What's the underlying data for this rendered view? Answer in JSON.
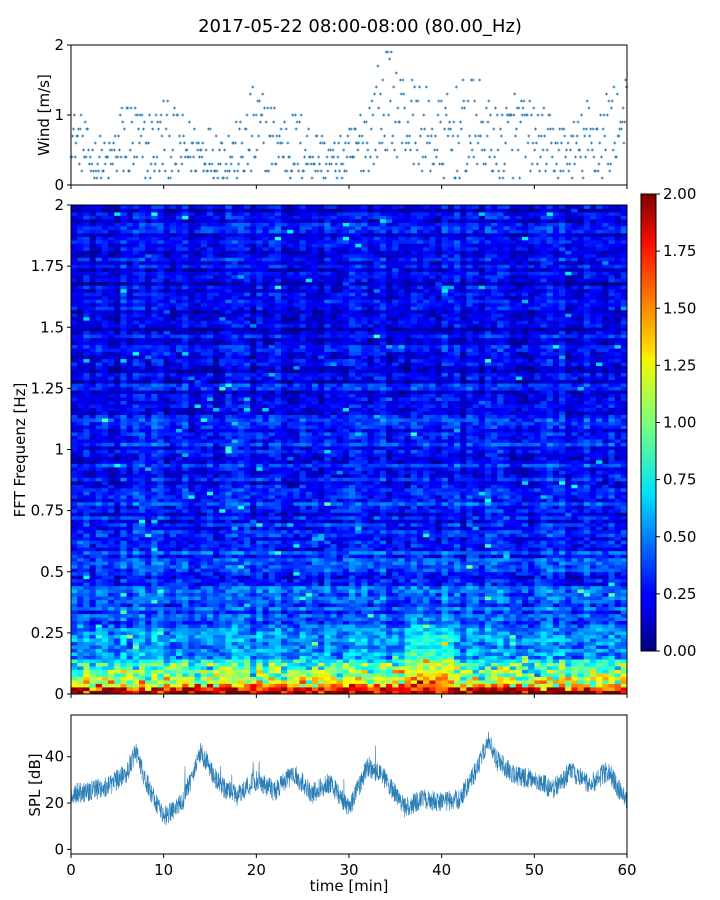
{
  "figure": {
    "title": "2017-05-22 08:00-08:00 (80.00_Hz)",
    "xlabel": "time [min]",
    "xlim": [
      0,
      60
    ],
    "xticks": [
      "0",
      "10",
      "20",
      "30",
      "40",
      "50",
      "60"
    ]
  },
  "chart_data": [
    {
      "type": "scatter",
      "name": "wind",
      "ylabel": "Wind [m/s]",
      "xlim": [
        0,
        60
      ],
      "ylim": [
        0,
        2
      ],
      "yticks": [
        "0",
        "1",
        "2"
      ],
      "color": "#1f77b4",
      "marker": "+",
      "series": [
        {
          "name": "wind_envelope_min",
          "x": [
            0,
            2,
            4,
            6,
            8,
            10,
            12,
            14,
            16,
            18,
            20,
            22,
            24,
            26,
            28,
            30,
            32,
            34,
            36,
            38,
            40,
            42,
            44,
            46,
            48,
            50,
            52,
            54,
            56,
            58,
            60
          ],
          "values": [
            0.4,
            0.1,
            0.1,
            0.1,
            0.1,
            0.1,
            0.1,
            0.2,
            0.1,
            0.1,
            0.1,
            0.2,
            0.1,
            0.1,
            0.1,
            0.1,
            0.2,
            0.5,
            0.4,
            0.2,
            0.1,
            0.1,
            0.3,
            0.1,
            0.1,
            0.2,
            0.1,
            0.1,
            0.1,
            0.1,
            0.7
          ]
        },
        {
          "name": "wind_envelope_max",
          "x": [
            0,
            2,
            4,
            6,
            8,
            10,
            12,
            14,
            16,
            18,
            20,
            22,
            24,
            26,
            28,
            30,
            32,
            34,
            36,
            38,
            40,
            42,
            44,
            46,
            48,
            50,
            52,
            54,
            56,
            58,
            60
          ],
          "values": [
            1.2,
            0.8,
            0.6,
            1.4,
            1.1,
            1.3,
            1.0,
            0.9,
            0.9,
            0.9,
            1.5,
            1.2,
            1.1,
            1.0,
            0.6,
            0.8,
            1.4,
            2.0,
            1.7,
            1.4,
            1.3,
            1.5,
            1.5,
            1.1,
            1.5,
            1.2,
            1.0,
            0.9,
            1.3,
            1.5,
            1.5
          ]
        }
      ]
    },
    {
      "type": "heatmap",
      "name": "spectrogram",
      "ylabel": "FFT Frequenz [Hz]",
      "xlim": [
        0,
        60
      ],
      "ylim": [
        0,
        2
      ],
      "yticks": [
        "0",
        "0.25",
        "0.5",
        "0.75",
        "1",
        "1.25",
        "1.5",
        "1.75",
        "2"
      ],
      "colormap": "jet",
      "colorbar": {
        "vmin": 0,
        "vmax": 2,
        "ticks": [
          "0.00",
          "0.25",
          "0.50",
          "0.75",
          "1.00",
          "1.25",
          "1.50",
          "1.75",
          "2.00"
        ]
      },
      "freq_profile": {
        "freq": [
          0,
          0.02,
          0.05,
          0.1,
          0.15,
          0.25,
          0.4,
          0.6,
          0.8,
          1.0,
          1.3,
          1.6,
          2.0
        ],
        "value": [
          1.9,
          1.6,
          1.0,
          0.75,
          0.6,
          0.45,
          0.38,
          0.32,
          0.3,
          0.28,
          0.24,
          0.2,
          0.2
        ]
      },
      "hotspot": {
        "time": [
          36,
          41
        ],
        "freq": [
          0,
          0.35
        ],
        "value": 1.8
      }
    },
    {
      "type": "line",
      "name": "spl",
      "ylabel": "SPL [dB]",
      "xlim": [
        0,
        60
      ],
      "ylim": [
        -2,
        58
      ],
      "yticks": [
        "0",
        "20",
        "40"
      ],
      "color": "#1f77b4",
      "x": [
        0,
        2,
        4,
        6,
        7,
        8,
        10,
        12,
        14,
        16,
        18,
        20,
        22,
        24,
        26,
        28,
        30,
        32,
        34,
        36,
        38,
        40,
        42,
        44,
        45,
        46,
        48,
        50,
        52,
        54,
        56,
        58,
        60
      ],
      "values": [
        24,
        25,
        27,
        33,
        42,
        30,
        14,
        20,
        42,
        28,
        23,
        30,
        25,
        33,
        24,
        29,
        17,
        36,
        30,
        18,
        22,
        20,
        22,
        36,
        48,
        38,
        32,
        30,
        26,
        34,
        28,
        34,
        20
      ]
    }
  ]
}
